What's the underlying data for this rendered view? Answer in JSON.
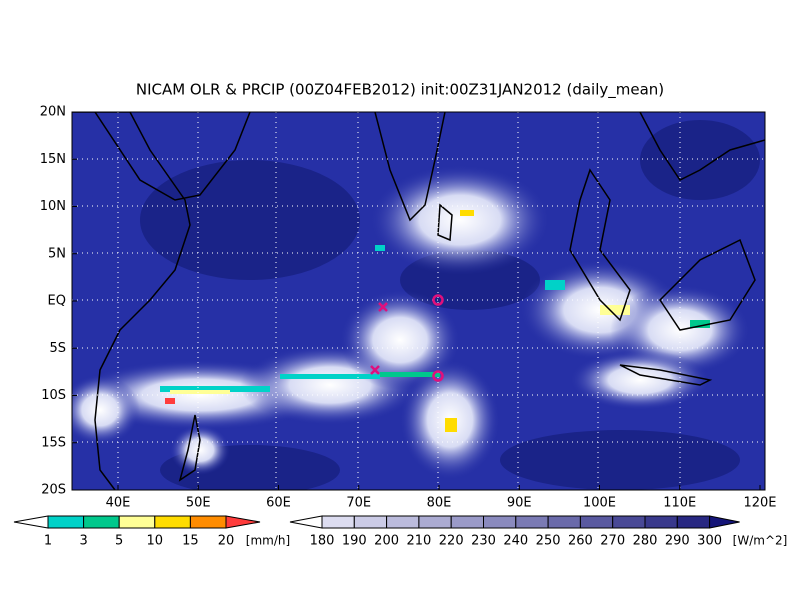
{
  "header": {
    "title": "NICAM OLR & PRCIP (00Z04FEB2012) init:00Z31JAN2012 (daily_mean)"
  },
  "map": {
    "lat_labels": [
      "20N",
      "15N",
      "10N",
      "5N",
      "EQ",
      "5S",
      "10S",
      "15S",
      "20S"
    ],
    "lon_labels": [
      "40E",
      "50E",
      "60E",
      "70E",
      "80E",
      "90E",
      "100E",
      "110E",
      "120E"
    ]
  },
  "precip_scale": {
    "labels": [
      "1",
      "3",
      "5",
      "10",
      "15",
      "20"
    ],
    "unit": "[mm/h]"
  },
  "olr_scale": {
    "labels": [
      "180",
      "190",
      "200",
      "210",
      "220",
      "230",
      "240",
      "250",
      "260",
      "270",
      "280",
      "290",
      "300"
    ],
    "unit": "[W/m^2]"
  }
}
